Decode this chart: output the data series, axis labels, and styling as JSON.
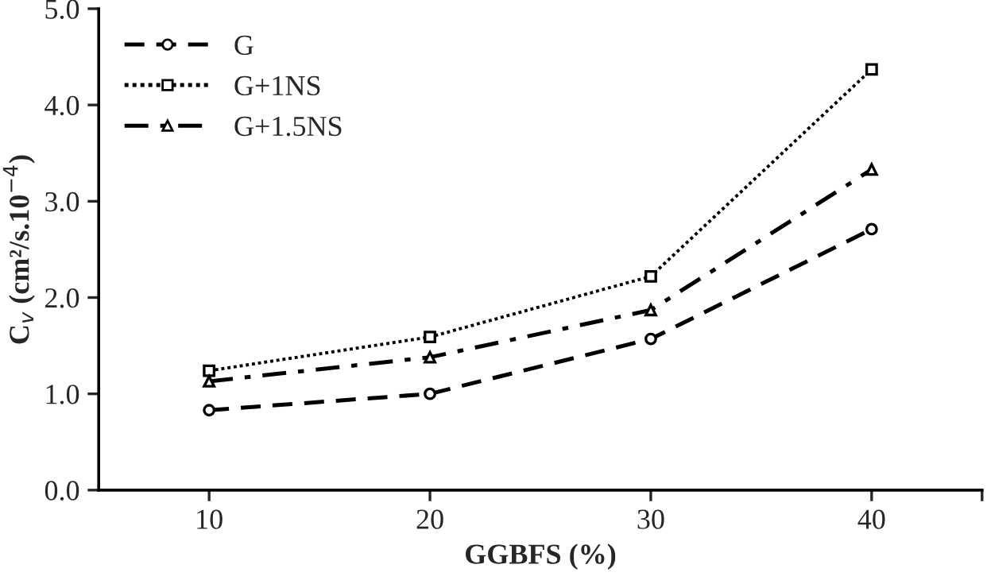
{
  "chart_data": {
    "type": "line",
    "xlabel": "GGBFS (%)",
    "ylabel": "C$_{v}$ (cm²/s.10$^{−4}$)",
    "x": [
      10,
      20,
      30,
      40
    ],
    "series": [
      {
        "name": "G",
        "color": "#000000",
        "values": [
          0.83,
          1.0,
          1.57,
          2.71
        ],
        "marker": "circle",
        "line_style": "dashed"
      },
      {
        "name": "G+1NS",
        "color": "#000000",
        "values": [
          1.24,
          1.59,
          2.22,
          4.37
        ],
        "marker": "square",
        "line_style": "dotted"
      },
      {
        "name": "G+1.5NS",
        "color": "#000000",
        "values": [
          1.13,
          1.38,
          1.87,
          3.33
        ],
        "marker": "triangle",
        "line_style": "dashdot"
      }
    ],
    "xlim": [
      5,
      45
    ],
    "xticks": [
      10,
      20,
      30,
      40,
      {
        "value": 45,
        "label": null
      }
    ],
    "ylim": [
      0,
      5
    ],
    "yticks": [
      {
        "value": 0,
        "label": "0.0"
      },
      {
        "value": 1,
        "label": "1.0"
      },
      {
        "value": 2,
        "label": "2.0"
      },
      {
        "value": 3,
        "label": "3.0"
      },
      {
        "value": 4,
        "label": "4.0"
      },
      {
        "value": 5,
        "label": "5.0"
      }
    ],
    "grid": false,
    "legend": "top left"
  }
}
